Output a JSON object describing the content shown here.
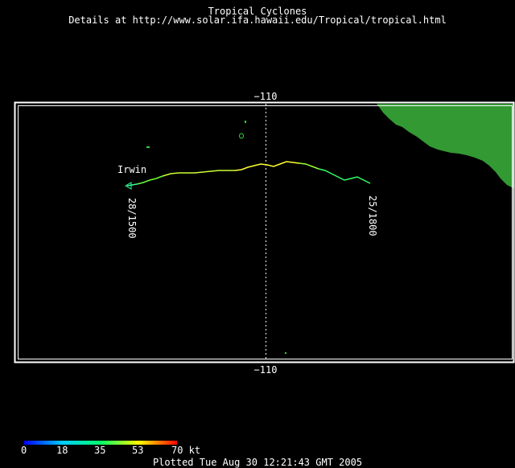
{
  "header": {
    "title": "Tropical Cyclones",
    "subtitle": "Details at http://www.solar.ifa.hawaii.edu/Tropical/tropical.html"
  },
  "map": {
    "longitude_top_label": "−110",
    "longitude_bottom_label": "−110",
    "land_color": "#339933",
    "ocean_color": "#000000",
    "frame_color": "#ffffff"
  },
  "storm": {
    "name": "Irwin",
    "start_label": "25/1800",
    "end_label": "28/1500"
  },
  "legend": {
    "ticks": [
      "0",
      "18",
      "35",
      "53",
      "70 kt"
    ],
    "colors": [
      "#0000ff",
      "#00ccff",
      "#00ff66",
      "#ffff00",
      "#ff0000"
    ]
  },
  "footer": {
    "plotted": "Plotted Tue Aug 30 12:21:43 GMT 2005"
  }
}
